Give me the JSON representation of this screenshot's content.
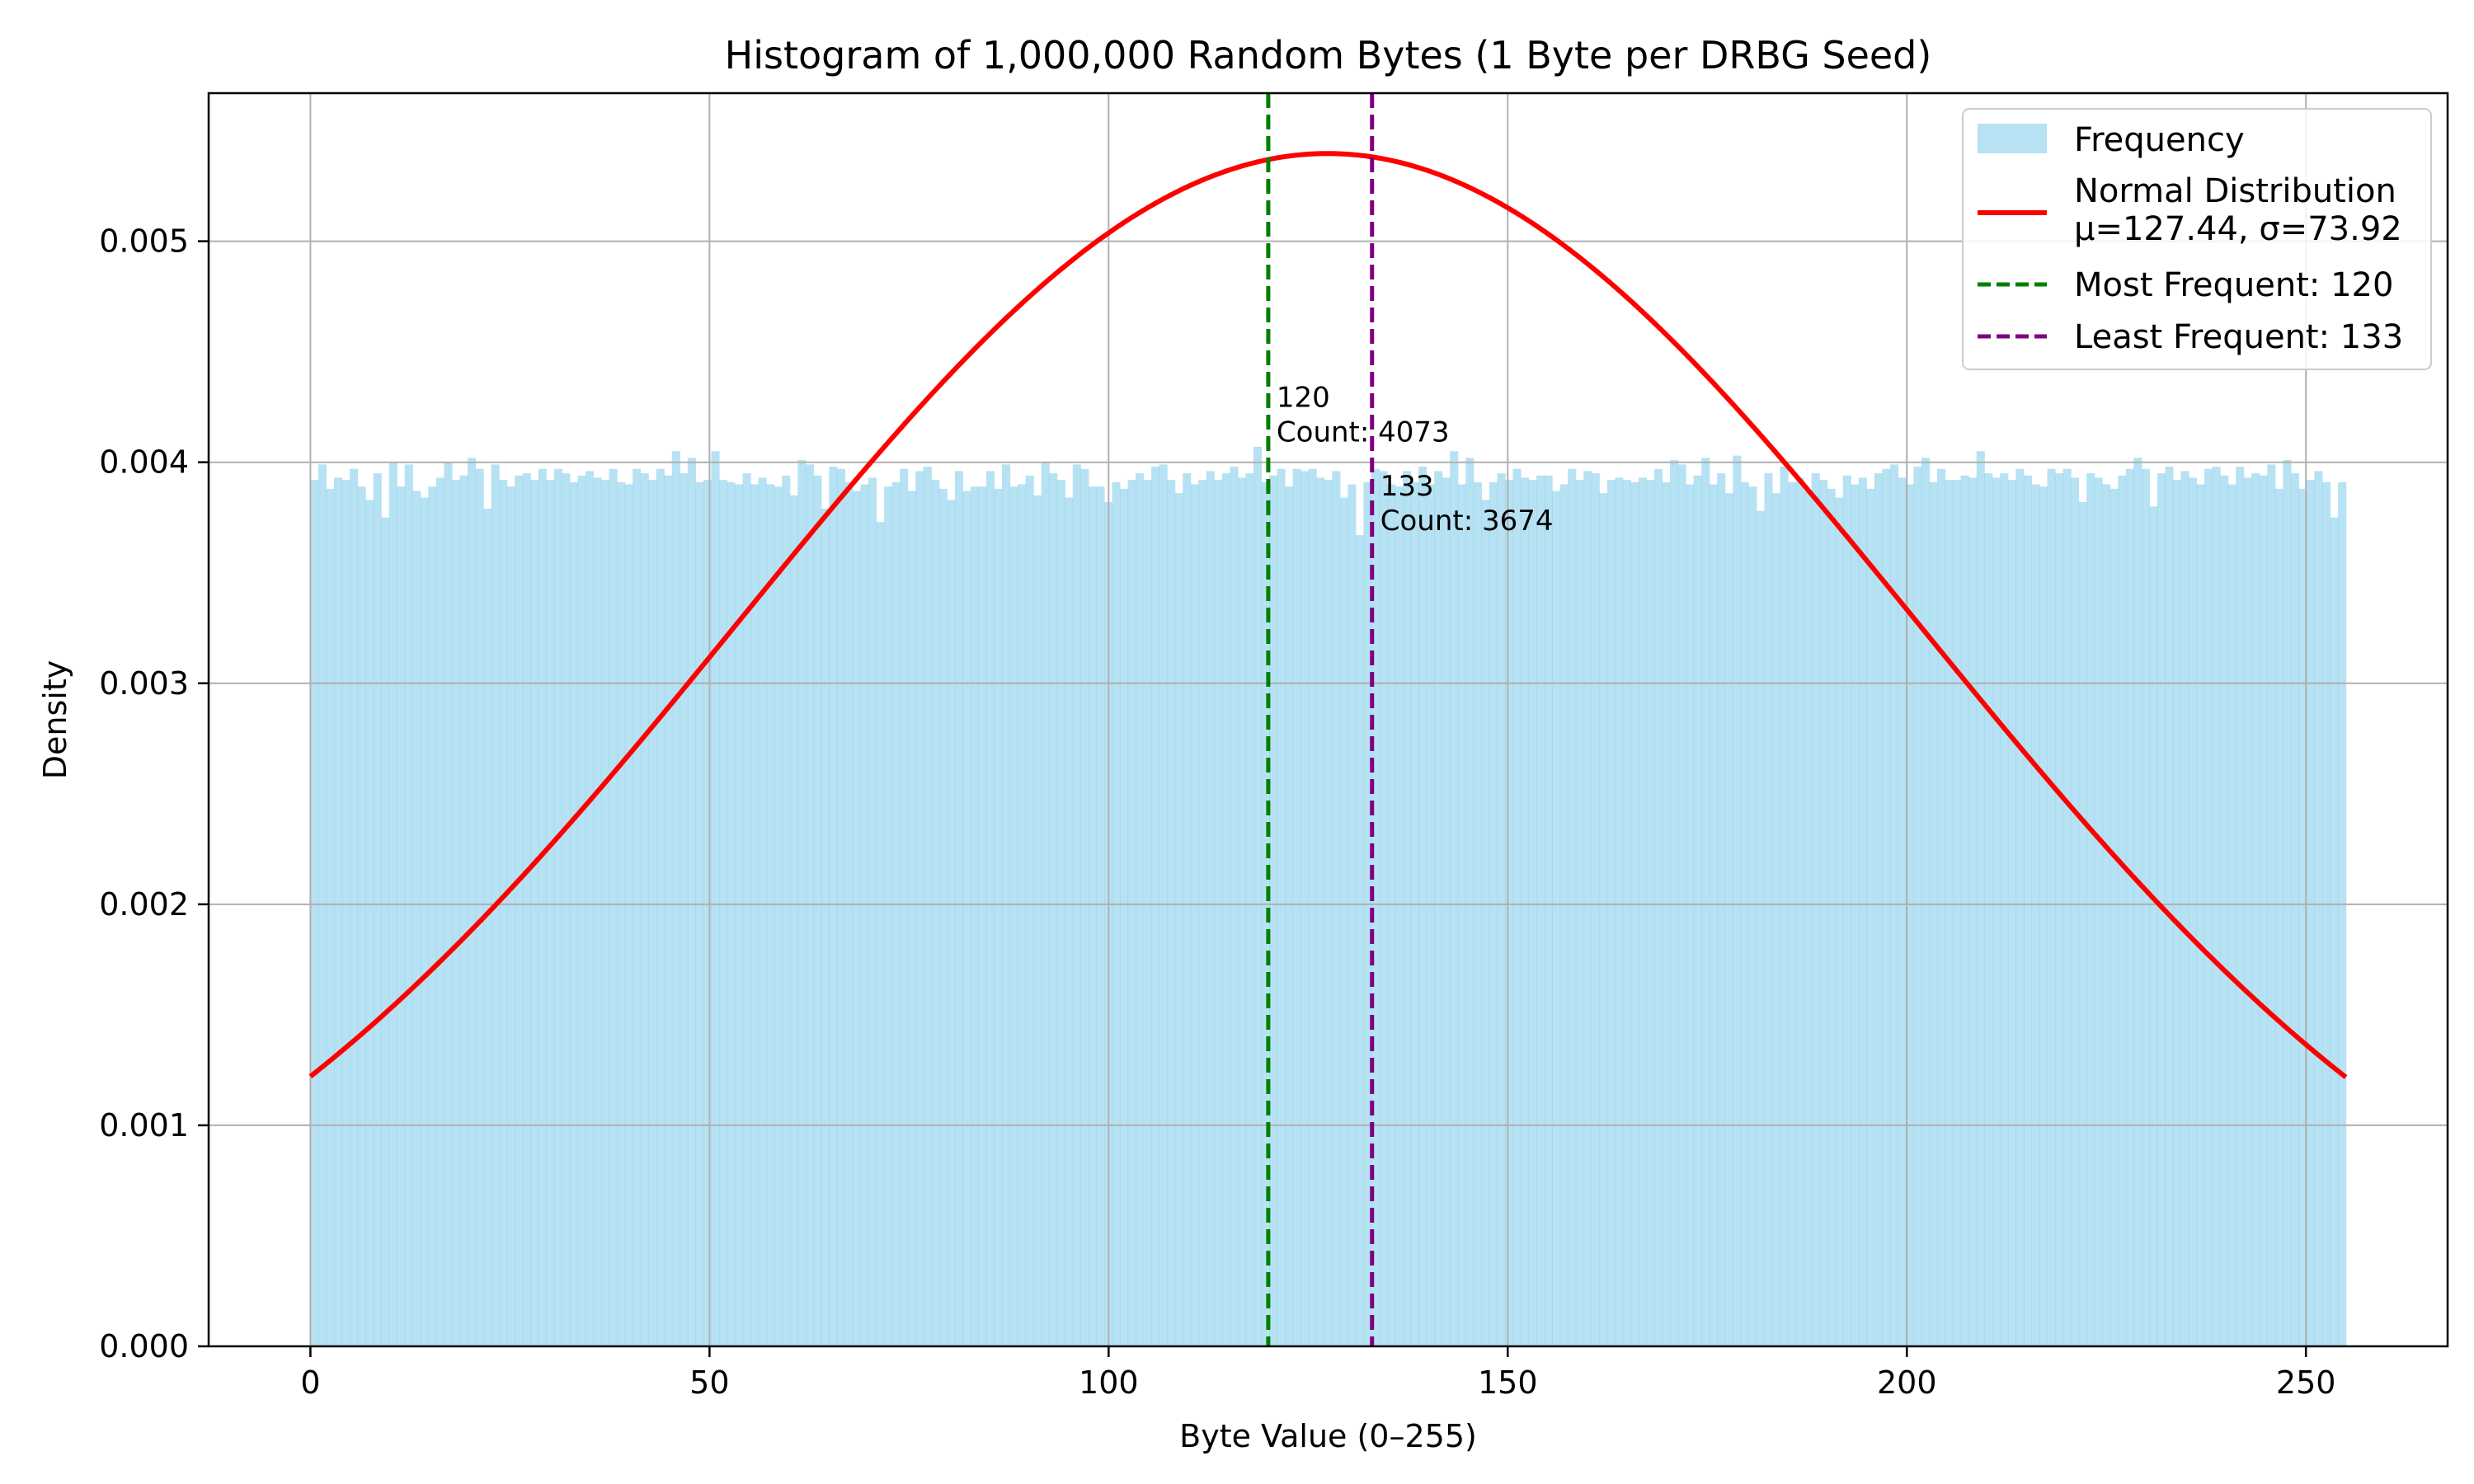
{
  "chart_data": {
    "type": "bar",
    "title": "Histogram of 1,000,000 Random Bytes (1 Byte per DRBG Seed)",
    "xlabel": "Byte Value (0–255)",
    "ylabel": "Density",
    "xlim": [
      -12.75,
      267.75
    ],
    "ylim": [
      0,
      0.00567
    ],
    "xticks": [
      0,
      50,
      100,
      150,
      200,
      250
    ],
    "xtick_labels": [
      "0",
      "50",
      "100",
      "150",
      "200",
      "250"
    ],
    "yticks": [
      0,
      0.001,
      0.002,
      0.003,
      0.004,
      0.005
    ],
    "ytick_labels": [
      "0.000",
      "0.001",
      "0.002",
      "0.003",
      "0.004",
      "0.005"
    ],
    "grid": true,
    "legend_position": "top-right",
    "bin_range": [
      0,
      255
    ],
    "series": [
      {
        "name": "Frequency",
        "kind": "histogram",
        "color": "#87CEEB",
        "opacity": 0.6,
        "values": [
          0.00392,
          0.00399,
          0.00388,
          0.00393,
          0.00392,
          0.00397,
          0.00389,
          0.00383,
          0.00395,
          0.00375,
          0.004,
          0.00389,
          0.00399,
          0.00387,
          0.00384,
          0.00389,
          0.00393,
          0.004,
          0.00392,
          0.00394,
          0.00402,
          0.00397,
          0.00379,
          0.00399,
          0.00392,
          0.00389,
          0.00394,
          0.00395,
          0.00392,
          0.00397,
          0.00392,
          0.00397,
          0.00395,
          0.00391,
          0.00394,
          0.00396,
          0.00393,
          0.00392,
          0.00397,
          0.00391,
          0.0039,
          0.00397,
          0.00395,
          0.00392,
          0.00397,
          0.00394,
          0.00405,
          0.00395,
          0.00402,
          0.00391,
          0.00392,
          0.00405,
          0.00392,
          0.00391,
          0.0039,
          0.00395,
          0.0039,
          0.00393,
          0.0039,
          0.00389,
          0.00394,
          0.00385,
          0.00401,
          0.00399,
          0.00394,
          0.00379,
          0.00398,
          0.00397,
          0.00391,
          0.00387,
          0.0039,
          0.00393,
          0.00373,
          0.00389,
          0.00391,
          0.00397,
          0.00387,
          0.00396,
          0.00398,
          0.00392,
          0.00388,
          0.00383,
          0.00396,
          0.00387,
          0.00389,
          0.00389,
          0.00396,
          0.00388,
          0.00399,
          0.00389,
          0.0039,
          0.00394,
          0.00385,
          0.004,
          0.00395,
          0.00392,
          0.00384,
          0.00399,
          0.00397,
          0.00389,
          0.00389,
          0.00382,
          0.00391,
          0.00388,
          0.00392,
          0.00395,
          0.00392,
          0.00398,
          0.00399,
          0.00392,
          0.00386,
          0.00395,
          0.0039,
          0.00392,
          0.00396,
          0.00392,
          0.00395,
          0.00398,
          0.00393,
          0.00395,
          0.00407,
          0.00391,
          0.00394,
          0.00397,
          0.00389,
          0.00397,
          0.00396,
          0.00397,
          0.00393,
          0.00392,
          0.00396,
          0.00384,
          0.0039,
          0.00367,
          0.00391,
          0.00397,
          0.00396,
          0.0039,
          0.00389,
          0.00396,
          0.00391,
          0.00398,
          0.0039,
          0.00396,
          0.00393,
          0.00405,
          0.0039,
          0.00402,
          0.00391,
          0.00383,
          0.00391,
          0.00395,
          0.00392,
          0.00397,
          0.00393,
          0.00392,
          0.00394,
          0.00394,
          0.00387,
          0.0039,
          0.00397,
          0.00392,
          0.00396,
          0.00395,
          0.00386,
          0.00392,
          0.00393,
          0.00392,
          0.00391,
          0.00393,
          0.00392,
          0.00397,
          0.00391,
          0.00401,
          0.00399,
          0.0039,
          0.00394,
          0.00402,
          0.0039,
          0.00395,
          0.00386,
          0.00403,
          0.00391,
          0.00389,
          0.00378,
          0.00395,
          0.00386,
          0.00398,
          0.00391,
          0.00393,
          0.00387,
          0.00395,
          0.00392,
          0.00388,
          0.00384,
          0.00394,
          0.0039,
          0.00393,
          0.00388,
          0.00395,
          0.00397,
          0.00399,
          0.00393,
          0.0039,
          0.00398,
          0.00402,
          0.00391,
          0.00397,
          0.00392,
          0.00392,
          0.00394,
          0.00393,
          0.00405,
          0.00395,
          0.00393,
          0.00395,
          0.00392,
          0.00397,
          0.00394,
          0.0039,
          0.00389,
          0.00397,
          0.00395,
          0.00397,
          0.00393,
          0.00382,
          0.00395,
          0.00393,
          0.0039,
          0.00388,
          0.00394,
          0.00397,
          0.00402,
          0.00397,
          0.0038,
          0.00395,
          0.00398,
          0.00392,
          0.00396,
          0.00393,
          0.0039,
          0.00397,
          0.00398,
          0.00394,
          0.0039,
          0.00398,
          0.00393,
          0.00395,
          0.00394,
          0.00399,
          0.00388,
          0.00401,
          0.00395,
          0.00388,
          0.00392,
          0.00396,
          0.00391,
          0.00375,
          0.00391
        ]
      },
      {
        "name": "Normal Distribution\nμ=127.44, σ=73.92",
        "kind": "pdf-line",
        "color": "#FF0000",
        "mu": 127.44,
        "sigma": 73.92,
        "x_range": [
          0,
          255
        ]
      }
    ],
    "vlines": [
      {
        "name": "Most Frequent: 120",
        "x": 120,
        "color": "#008000",
        "label_lines": [
          "120",
          "Count: 4073"
        ],
        "label_y": 0.00425
      },
      {
        "name": "Least Frequent: 133",
        "x": 133,
        "color": "#800080",
        "label_lines": [
          "133",
          "Count: 3674"
        ],
        "label_y": 0.00385
      }
    ]
  }
}
